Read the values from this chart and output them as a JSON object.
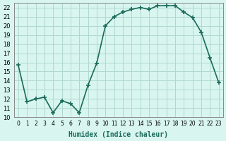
{
  "x": [
    0,
    1,
    2,
    3,
    4,
    5,
    6,
    7,
    8,
    9,
    10,
    11,
    12,
    13,
    14,
    15,
    16,
    17,
    18,
    19,
    20,
    21,
    22,
    23
  ],
  "y": [
    15.7,
    11.7,
    12.0,
    12.2,
    10.5,
    11.8,
    11.5,
    10.5,
    13.5,
    15.9,
    20.0,
    21.0,
    21.5,
    21.8,
    22.0,
    21.8,
    22.2,
    22.2,
    22.2,
    21.5,
    20.9,
    19.3,
    16.5,
    13.8
  ],
  "line_color": "#1a6b5a",
  "marker": "+",
  "marker_size": 5,
  "bg_color": "#d8f5f0",
  "grid_color": "#b0d8d0",
  "xlabel": "Humidex (Indice chaleur)",
  "ylim": [
    10,
    22.5
  ],
  "yticks": [
    10,
    11,
    12,
    13,
    14,
    15,
    16,
    17,
    18,
    19,
    20,
    21,
    22
  ],
  "xtick_labels": [
    "0",
    "1",
    "2",
    "3",
    "4",
    "5",
    "6",
    "7",
    "8",
    "9",
    "10",
    "11",
    "12",
    "13",
    "14",
    "15",
    "16",
    "17",
    "18",
    "19",
    "20",
    "21",
    "22",
    "23"
  ]
}
